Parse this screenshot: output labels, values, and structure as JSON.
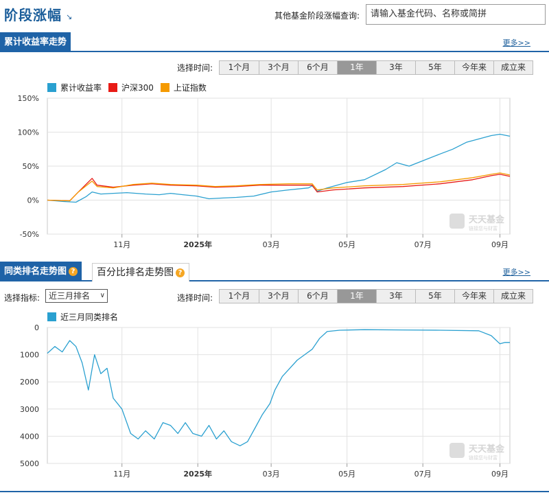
{
  "header": {
    "title": "阶段涨幅",
    "title_arrow": "↘",
    "query_label": "其他基金阶段涨幅查询:",
    "query_placeholder": "请输入基金代码、名称或简拼"
  },
  "section1": {
    "title": "累计收益率走势",
    "more": "更多>>",
    "time_label": "选择时间:",
    "time_buttons": [
      "1个月",
      "3个月",
      "6个月",
      "1年",
      "3年",
      "5年",
      "今年来",
      "成立来"
    ],
    "active_time": "1年"
  },
  "section2": {
    "tab_active": "同类排名走势图",
    "tab_other": "百分比排名走势图",
    "more": "更多>>",
    "indicator_label": "选择指标:",
    "indicator_value": "近三月排名",
    "time_label": "选择时间:",
    "time_buttons": [
      "1个月",
      "3个月",
      "6个月",
      "1年",
      "3年",
      "5年",
      "今年来",
      "成立来"
    ],
    "active_time": "1年"
  },
  "watermark": {
    "text": "天天基金",
    "sub": "链接您与财富"
  },
  "colors": {
    "primary": "#1f63a7",
    "series_fund": "#2aa0d0",
    "series_hs300": "#e81b16",
    "series_sh": "#f59a00"
  },
  "chart_data": [
    {
      "type": "line",
      "title": "",
      "ylabel": "",
      "ylim": [
        -50,
        150
      ],
      "y_ticks": [
        "150%",
        "100%",
        "50%",
        "0%",
        "-50%"
      ],
      "y_tick_values": [
        150,
        100,
        50,
        0,
        -50
      ],
      "x_ticks": [
        "11月",
        "2025年",
        "03月",
        "05月",
        "07月",
        "09月"
      ],
      "x_tick_dates": [
        "2024-11-01",
        "2025-01-01",
        "2025-03-01",
        "2025-05-01",
        "2025-07-01",
        "2025-09-01"
      ],
      "xlim": [
        "2024-09-02",
        "2025-09-09"
      ],
      "grid": true,
      "legend_position": "top-left",
      "series": [
        {
          "name": "累计收益率",
          "color": "#2aa0d0",
          "points": [
            [
              "2024-09-02",
              0
            ],
            [
              "2024-09-15",
              -2
            ],
            [
              "2024-09-25",
              -3
            ],
            [
              "2024-10-03",
              5
            ],
            [
              "2024-10-08",
              12
            ],
            [
              "2024-10-15",
              9
            ],
            [
              "2024-10-25",
              10
            ],
            [
              "2024-11-05",
              11
            ],
            [
              "2024-11-20",
              9
            ],
            [
              "2024-12-01",
              8
            ],
            [
              "2024-12-10",
              10
            ],
            [
              "2024-12-20",
              8
            ],
            [
              "2024-12-31",
              6
            ],
            [
              "2025-01-10",
              2
            ],
            [
              "2025-01-20",
              3
            ],
            [
              "2025-02-01",
              4
            ],
            [
              "2025-02-15",
              6
            ],
            [
              "2025-03-01",
              12
            ],
            [
              "2025-03-15",
              15
            ],
            [
              "2025-03-31",
              18
            ],
            [
              "2025-04-03",
              21
            ],
            [
              "2025-04-07",
              13
            ],
            [
              "2025-04-15",
              18
            ],
            [
              "2025-05-01",
              26
            ],
            [
              "2025-05-15",
              30
            ],
            [
              "2025-06-01",
              45
            ],
            [
              "2025-06-10",
              55
            ],
            [
              "2025-06-20",
              50
            ],
            [
              "2025-07-01",
              58
            ],
            [
              "2025-07-15",
              68
            ],
            [
              "2025-07-25",
              75
            ],
            [
              "2025-08-05",
              85
            ],
            [
              "2025-08-15",
              90
            ],
            [
              "2025-08-25",
              95
            ],
            [
              "2025-09-01",
              97
            ],
            [
              "2025-09-09",
              94
            ]
          ]
        },
        {
          "name": "沪深300",
          "color": "#e81b16",
          "points": [
            [
              "2024-09-02",
              0
            ],
            [
              "2024-09-20",
              -1
            ],
            [
              "2024-09-27",
              12
            ],
            [
              "2024-10-08",
              32
            ],
            [
              "2024-10-12",
              22
            ],
            [
              "2024-10-25",
              19
            ],
            [
              "2024-11-10",
              22
            ],
            [
              "2024-11-25",
              24
            ],
            [
              "2024-12-10",
              22
            ],
            [
              "2024-12-31",
              21
            ],
            [
              "2025-01-15",
              19
            ],
            [
              "2025-02-01",
              20
            ],
            [
              "2025-02-20",
              22
            ],
            [
              "2025-03-15",
              22
            ],
            [
              "2025-04-03",
              22
            ],
            [
              "2025-04-07",
              12
            ],
            [
              "2025-04-20",
              15
            ],
            [
              "2025-05-15",
              18
            ],
            [
              "2025-06-15",
              20
            ],
            [
              "2025-07-15",
              24
            ],
            [
              "2025-08-10",
              30
            ],
            [
              "2025-08-25",
              36
            ],
            [
              "2025-09-01",
              38
            ],
            [
              "2025-09-09",
              35
            ]
          ]
        },
        {
          "name": "上证指数",
          "color": "#f59a00",
          "points": [
            [
              "2024-09-02",
              0
            ],
            [
              "2024-09-20",
              -1
            ],
            [
              "2024-09-27",
              12
            ],
            [
              "2024-10-08",
              28
            ],
            [
              "2024-10-12",
              20
            ],
            [
              "2024-10-25",
              18
            ],
            [
              "2024-11-10",
              23
            ],
            [
              "2024-11-25",
              25
            ],
            [
              "2024-12-10",
              23
            ],
            [
              "2024-12-31",
              22
            ],
            [
              "2025-01-15",
              20
            ],
            [
              "2025-02-01",
              21
            ],
            [
              "2025-02-20",
              23
            ],
            [
              "2025-03-15",
              24
            ],
            [
              "2025-04-03",
              24
            ],
            [
              "2025-04-07",
              15
            ],
            [
              "2025-04-20",
              18
            ],
            [
              "2025-05-15",
              21
            ],
            [
              "2025-06-15",
              23
            ],
            [
              "2025-07-15",
              27
            ],
            [
              "2025-08-10",
              33
            ],
            [
              "2025-08-25",
              38
            ],
            [
              "2025-09-01",
              40
            ],
            [
              "2025-09-09",
              37
            ]
          ]
        }
      ]
    },
    {
      "type": "line",
      "title": "",
      "ylabel": "",
      "ylim": [
        0,
        5000
      ],
      "y_inverted": true,
      "y_ticks": [
        "0",
        "1000",
        "2000",
        "3000",
        "4000",
        "5000"
      ],
      "y_tick_values": [
        0,
        1000,
        2000,
        3000,
        4000,
        5000
      ],
      "x_ticks": [
        "11月",
        "2025年",
        "03月",
        "05月",
        "07月",
        "09月"
      ],
      "x_tick_dates": [
        "2024-11-01",
        "2025-01-01",
        "2025-03-01",
        "2025-05-01",
        "2025-07-01",
        "2025-09-01"
      ],
      "xlim": [
        "2024-09-02",
        "2025-09-09"
      ],
      "grid": true,
      "legend_position": "top-left",
      "series": [
        {
          "name": "近三月同类排名",
          "color": "#2aa0d0",
          "points": [
            [
              "2024-09-02",
              950
            ],
            [
              "2024-09-08",
              700
            ],
            [
              "2024-09-14",
              900
            ],
            [
              "2024-09-20",
              480
            ],
            [
              "2024-09-25",
              700
            ],
            [
              "2024-09-30",
              1300
            ],
            [
              "2024-10-05",
              2300
            ],
            [
              "2024-10-10",
              1000
            ],
            [
              "2024-10-15",
              1700
            ],
            [
              "2024-10-20",
              1500
            ],
            [
              "2024-10-25",
              2600
            ],
            [
              "2024-11-01",
              3000
            ],
            [
              "2024-11-08",
              3900
            ],
            [
              "2024-11-14",
              4100
            ],
            [
              "2024-11-20",
              3800
            ],
            [
              "2024-11-27",
              4100
            ],
            [
              "2024-12-04",
              3500
            ],
            [
              "2024-12-10",
              3600
            ],
            [
              "2024-12-16",
              3900
            ],
            [
              "2024-12-22",
              3500
            ],
            [
              "2024-12-28",
              3900
            ],
            [
              "2025-01-04",
              4000
            ],
            [
              "2025-01-10",
              3600
            ],
            [
              "2025-01-16",
              4100
            ],
            [
              "2025-01-22",
              3800
            ],
            [
              "2025-01-28",
              4200
            ],
            [
              "2025-02-04",
              4350
            ],
            [
              "2025-02-10",
              4200
            ],
            [
              "2025-02-16",
              3700
            ],
            [
              "2025-02-22",
              3200
            ],
            [
              "2025-02-28",
              2800
            ],
            [
              "2025-03-04",
              2300
            ],
            [
              "2025-03-10",
              1800
            ],
            [
              "2025-03-16",
              1500
            ],
            [
              "2025-03-22",
              1200
            ],
            [
              "2025-03-28",
              1000
            ],
            [
              "2025-04-03",
              800
            ],
            [
              "2025-04-09",
              400
            ],
            [
              "2025-04-15",
              150
            ],
            [
              "2025-04-25",
              100
            ],
            [
              "2025-05-15",
              80
            ],
            [
              "2025-06-15",
              90
            ],
            [
              "2025-07-15",
              100
            ],
            [
              "2025-08-15",
              120
            ],
            [
              "2025-08-25",
              300
            ],
            [
              "2025-09-01",
              600
            ],
            [
              "2025-09-05",
              550
            ],
            [
              "2025-09-09",
              550
            ]
          ]
        }
      ]
    }
  ]
}
